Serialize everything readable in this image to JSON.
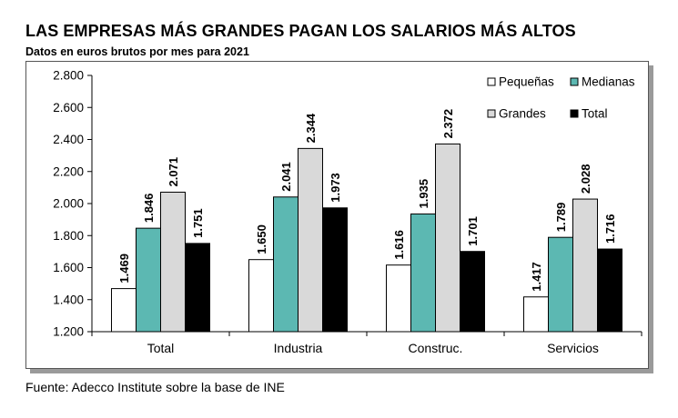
{
  "header": {
    "title": "LAS EMPRESAS MÁS GRANDES PAGAN LOS SALARIOS MÁS ALTOS",
    "subtitle": "Datos en euros brutos por mes para 2021"
  },
  "footer": {
    "source": "Fuente: Adecco Institute sobre la base de INE"
  },
  "colors": {
    "Pequeñas": "#ffffff",
    "Medianas": "#5cb8b2",
    "Grandes": "#d9d9d9",
    "Total": "#000000"
  },
  "chart_data": {
    "type": "bar",
    "title": "LAS EMPRESAS MÁS GRANDES PAGAN LOS SALARIOS MÁS ALTOS",
    "subtitle": "Datos en euros brutos por mes para 2021",
    "xlabel": "",
    "ylabel": "",
    "categories": [
      "Total",
      "Industria",
      "Construc.",
      "Servicios"
    ],
    "ylim": [
      1200,
      2800
    ],
    "yticks": [
      1200,
      1400,
      1600,
      1800,
      2000,
      2200,
      2400,
      2600,
      2800
    ],
    "ytick_labels": [
      "1.200",
      "1.400",
      "1.600",
      "1.800",
      "2.000",
      "2.200",
      "2.400",
      "2.600",
      "2.800"
    ],
    "grid": false,
    "legend_position": "top-right",
    "series": [
      {
        "name": "Pequeñas",
        "values": [
          1469,
          1650,
          1616,
          1417
        ],
        "labels": [
          "1.469",
          "1.650",
          "1.616",
          "1.417"
        ]
      },
      {
        "name": "Medianas",
        "values": [
          1846,
          2041,
          1935,
          1789
        ],
        "labels": [
          "1.846",
          "2.041",
          "1.935",
          "1.789"
        ]
      },
      {
        "name": "Grandes",
        "values": [
          2071,
          2344,
          2372,
          2028
        ],
        "labels": [
          "2.071",
          "2.344",
          "2.372",
          "2.028"
        ]
      },
      {
        "name": "Total",
        "values": [
          1751,
          1973,
          1701,
          1716
        ],
        "labels": [
          "1.751",
          "1.973",
          "1.701",
          "1.716"
        ]
      }
    ]
  }
}
